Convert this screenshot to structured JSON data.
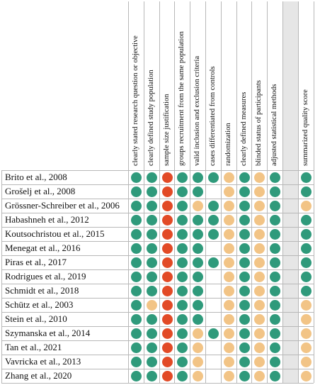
{
  "columns": [
    "clearly stated research question or objective",
    "clearly defined study population",
    "sample size justification",
    "groups recruitment from the same population",
    "valid inclusion and exclusion criteria",
    "cases differentiated from controls",
    "randomization",
    "clearly defined measures",
    "blinded status of participants",
    "adjusted statistical methods",
    "",
    "summarized quality score"
  ],
  "status_colors": {
    "G": "#2f9a7b",
    "Y": "#f2c486",
    "R": "#e24a26"
  },
  "rows": [
    {
      "study": "Brito et al., 2008",
      "ratings": [
        "G",
        "G",
        "R",
        "G",
        "G",
        "G",
        "Y",
        "G",
        "Y",
        "G",
        "",
        "G"
      ]
    },
    {
      "study": "Grošelj et al., 2008",
      "ratings": [
        "G",
        "G",
        "R",
        "G",
        "G",
        "",
        "Y",
        "G",
        "Y",
        "G",
        "",
        "G"
      ]
    },
    {
      "study": "Grössner-Schreiber et al., 2006",
      "ratings": [
        "G",
        "G",
        "R",
        "G",
        "Y",
        "G",
        "Y",
        "G",
        "Y",
        "G",
        "",
        "Y"
      ]
    },
    {
      "study": "Habashneh et al., 2012",
      "ratings": [
        "G",
        "G",
        "R",
        "G",
        "G",
        "G",
        "Y",
        "G",
        "Y",
        "G",
        "",
        "G"
      ]
    },
    {
      "study": "Koutsochristou et al., 2015",
      "ratings": [
        "G",
        "G",
        "R",
        "G",
        "G",
        "G",
        "Y",
        "G",
        "Y",
        "G",
        "",
        "G"
      ]
    },
    {
      "study": "Menegat et al., 2016",
      "ratings": [
        "G",
        "G",
        "R",
        "G",
        "G",
        "",
        "Y",
        "G",
        "Y",
        "G",
        "",
        "G"
      ]
    },
    {
      "study": "Piras et al., 2017",
      "ratings": [
        "G",
        "G",
        "R",
        "G",
        "G",
        "G",
        "Y",
        "G",
        "Y",
        "G",
        "",
        "G"
      ]
    },
    {
      "study": "Rodrigues et al., 2019",
      "ratings": [
        "G",
        "G",
        "R",
        "G",
        "G",
        "",
        "Y",
        "G",
        "Y",
        "G",
        "",
        "G"
      ]
    },
    {
      "study": "Schmidt et al., 2018",
      "ratings": [
        "G",
        "G",
        "R",
        "G",
        "G",
        "",
        "Y",
        "G",
        "Y",
        "G",
        "",
        "G"
      ]
    },
    {
      "study": "Schütz et al., 2003",
      "ratings": [
        "G",
        "Y",
        "R",
        "G",
        "G",
        "",
        "Y",
        "G",
        "Y",
        "G",
        "",
        "Y"
      ]
    },
    {
      "study": "Stein et al., 2010",
      "ratings": [
        "G",
        "G",
        "R",
        "G",
        "G",
        "",
        "Y",
        "G",
        "Y",
        "G",
        "",
        "Y"
      ]
    },
    {
      "study": "Szymanska et al., 2014",
      "ratings": [
        "G",
        "G",
        "R",
        "G",
        "Y",
        "G",
        "Y",
        "G",
        "Y",
        "G",
        "",
        "Y"
      ]
    },
    {
      "study": "Tan et al., 2021",
      "ratings": [
        "G",
        "G",
        "R",
        "G",
        "Y",
        "",
        "Y",
        "G",
        "Y",
        "G",
        "",
        "Y"
      ]
    },
    {
      "study": "Vavricka et al., 2013",
      "ratings": [
        "G",
        "G",
        "R",
        "G",
        "Y",
        "",
        "Y",
        "G",
        "Y",
        "G",
        "",
        "Y"
      ]
    },
    {
      "study": "Zhang et al., 2020",
      "ratings": [
        "G",
        "G",
        "R",
        "G",
        "Y",
        "",
        "Y",
        "G",
        "Y",
        "G",
        "",
        "Y"
      ]
    }
  ]
}
